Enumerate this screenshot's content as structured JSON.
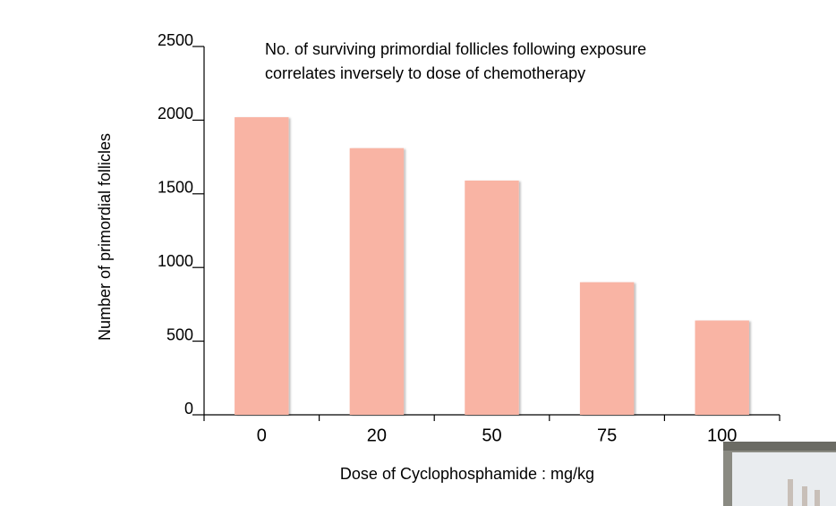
{
  "chart_data": {
    "type": "bar",
    "title": [
      "No. of surviving primordial follicles following exposure",
      "correlates inversely to dose of chemotherapy"
    ],
    "xlabel": "Dose of Cyclophosphamide : mg/kg",
    "ylabel": "Number of  primordial follicles",
    "categories": [
      "0",
      "20",
      "50",
      "75",
      "100"
    ],
    "values": [
      2020,
      1810,
      1590,
      900,
      640
    ],
    "color": "#f9b4a4",
    "ylim": [
      0,
      2500
    ],
    "yticks": [
      0,
      500,
      1000,
      1500,
      2000,
      2500
    ],
    "grid": false
  }
}
